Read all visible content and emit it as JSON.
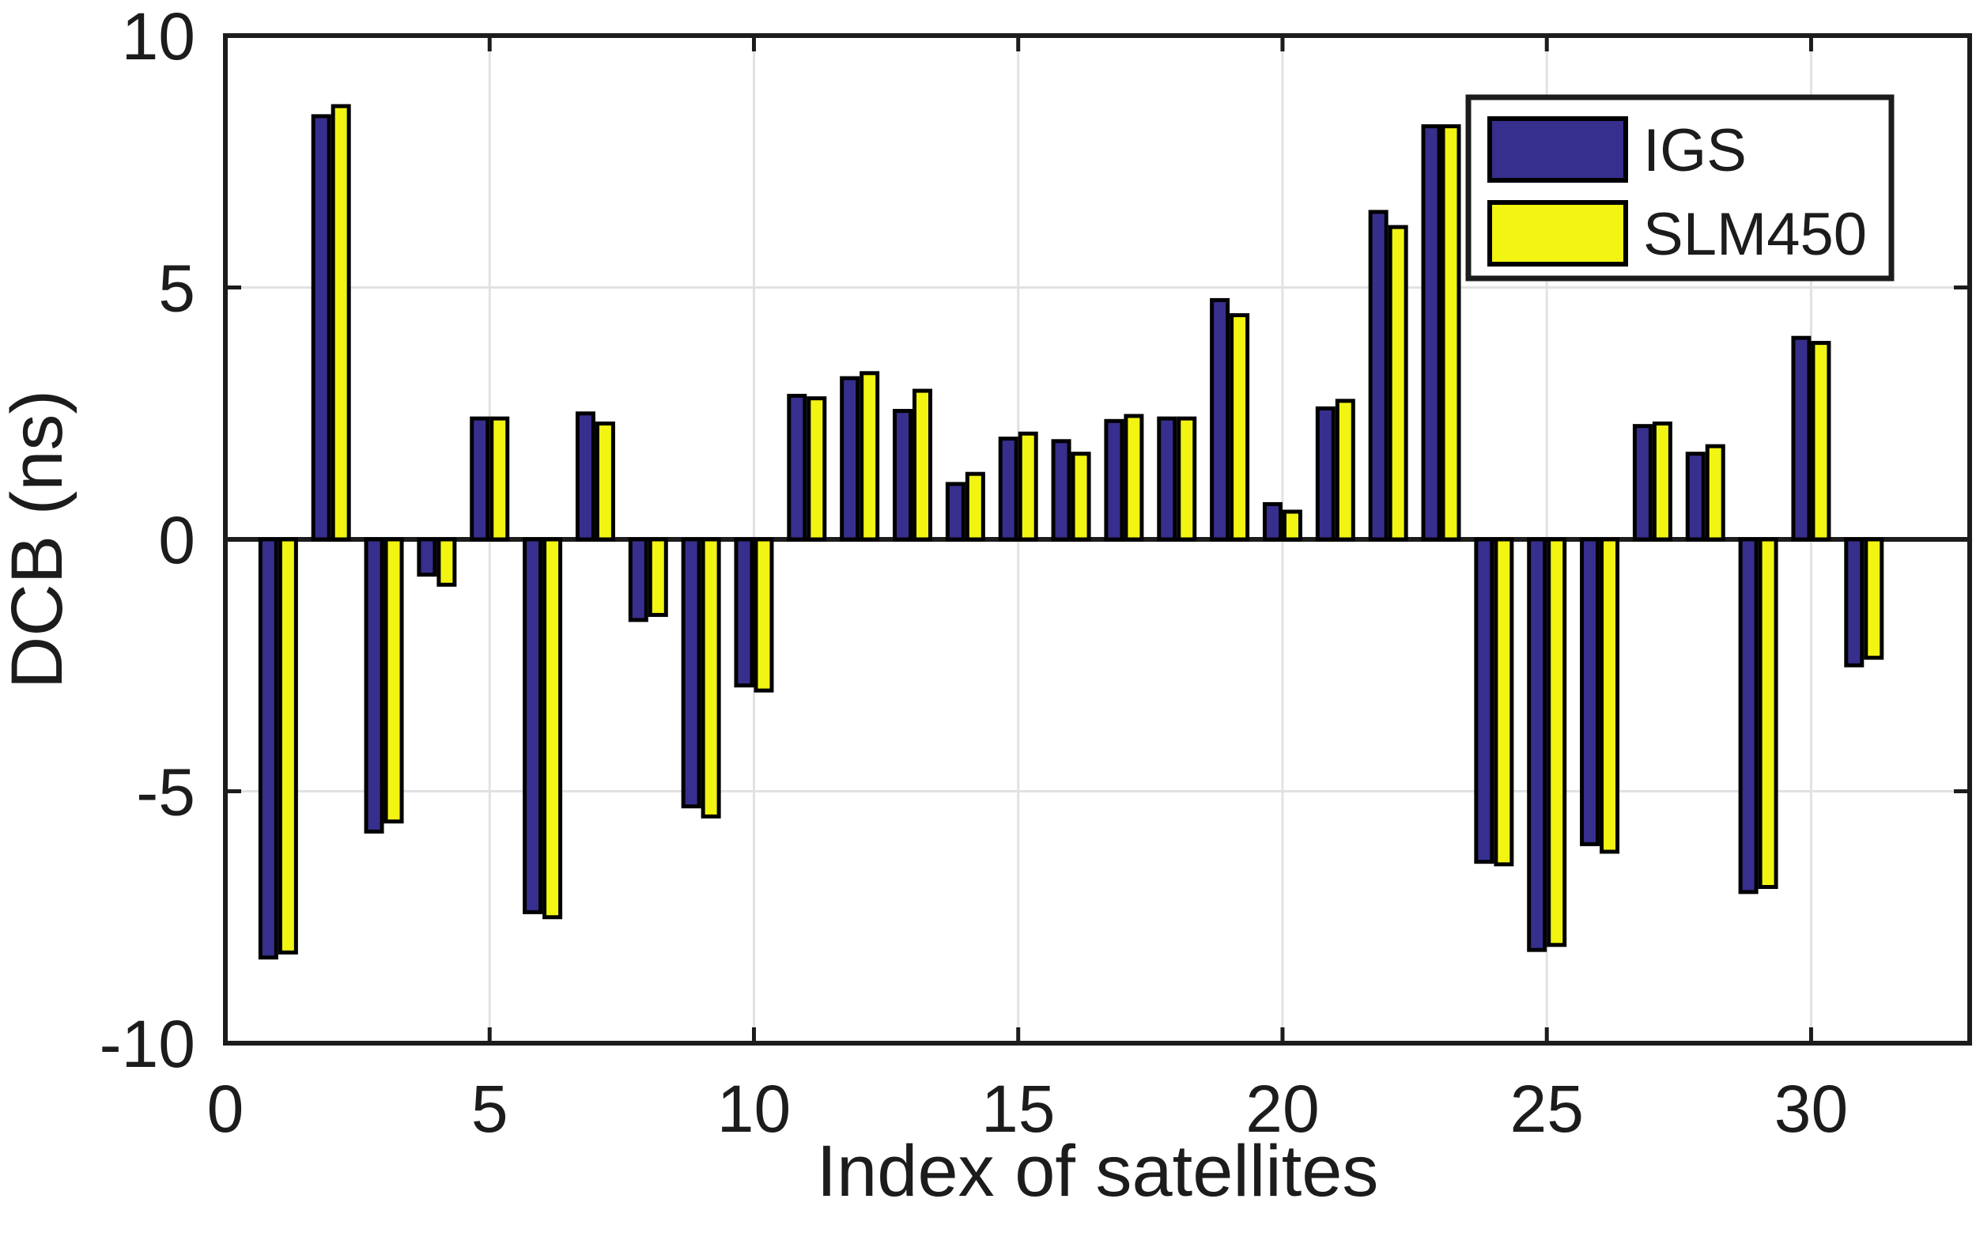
{
  "figure": {
    "background": "#ffffff"
  },
  "chart_data": {
    "type": "bar",
    "title": "",
    "xlabel": "Index of satellites",
    "ylabel": "DCB (ns)",
    "x": [
      1,
      2,
      3,
      4,
      5,
      6,
      7,
      8,
      9,
      10,
      11,
      12,
      13,
      14,
      15,
      16,
      17,
      18,
      19,
      20,
      21,
      22,
      23,
      24,
      25,
      26,
      27,
      28,
      29,
      30,
      31
    ],
    "series": [
      {
        "name": "IGS",
        "color": "#372F8D",
        "values": [
          -8.3,
          8.4,
          -5.8,
          -0.7,
          2.4,
          -7.4,
          2.5,
          -1.6,
          -5.3,
          -2.9,
          2.85,
          3.2,
          2.55,
          1.1,
          2.0,
          1.95,
          2.35,
          2.4,
          4.75,
          0.7,
          2.6,
          6.5,
          8.2,
          -6.4,
          -8.15,
          -6.05,
          2.25,
          1.7,
          -7.0,
          4.0,
          -2.5
        ]
      },
      {
        "name": "SLM450",
        "color": "#F2F412",
        "values": [
          -8.2,
          8.6,
          -5.6,
          -0.9,
          2.4,
          -7.5,
          2.3,
          -1.5,
          -5.5,
          -3.0,
          2.8,
          3.3,
          2.95,
          1.3,
          2.1,
          1.7,
          2.45,
          2.4,
          4.45,
          0.55,
          2.75,
          6.2,
          8.2,
          -6.45,
          -8.05,
          -6.2,
          2.3,
          1.85,
          -6.9,
          3.9,
          -2.35
        ]
      }
    ],
    "bar_outline_color": "#000000",
    "xlim": [
      0,
      33
    ],
    "ylim": [
      -10,
      10
    ],
    "xticks": [
      "0",
      "5",
      "10",
      "15",
      "20",
      "25",
      "30"
    ],
    "xtick_values": [
      0,
      5,
      10,
      15,
      20,
      25,
      30
    ],
    "yticks": [
      "-10",
      "-5",
      "0",
      "5",
      "10"
    ],
    "ytick_values": [
      -10,
      -5,
      0,
      5,
      10
    ],
    "grid": true,
    "grid_color": "#e2e2e2",
    "axis_color": "#1c1c1c",
    "zero_line": true,
    "legend_position": "top-right"
  }
}
